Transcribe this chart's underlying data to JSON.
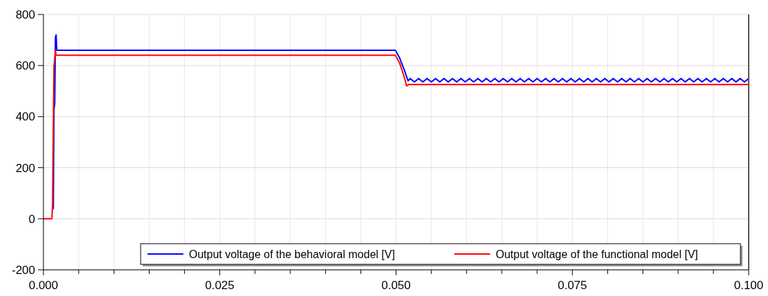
{
  "chart_data": {
    "type": "line",
    "xlim": [
      0,
      0.1
    ],
    "ylim": [
      -200,
      800
    ],
    "xticks": [
      {
        "value": 0,
        "label": "0.000"
      },
      {
        "value": 0.005,
        "label": null
      },
      {
        "value": 0.01,
        "label": null
      },
      {
        "value": 0.015,
        "label": null
      },
      {
        "value": 0.02,
        "label": null
      },
      {
        "value": 0.025,
        "label": "0.025"
      },
      {
        "value": 0.03,
        "label": null
      },
      {
        "value": 0.035,
        "label": null
      },
      {
        "value": 0.04,
        "label": null
      },
      {
        "value": 0.045,
        "label": null
      },
      {
        "value": 0.05,
        "label": "0.050"
      },
      {
        "value": 0.055,
        "label": null
      },
      {
        "value": 0.06,
        "label": null
      },
      {
        "value": 0.065,
        "label": null
      },
      {
        "value": 0.07,
        "label": null
      },
      {
        "value": 0.075,
        "label": "0.075"
      },
      {
        "value": 0.08,
        "label": null
      },
      {
        "value": 0.085,
        "label": null
      },
      {
        "value": 0.09,
        "label": null
      },
      {
        "value": 0.095,
        "label": null
      },
      {
        "value": 0.1,
        "label": "0.100"
      }
    ],
    "yticks": [
      -200,
      0,
      200,
      400,
      600,
      800
    ],
    "grid": true,
    "legend": "bottom right",
    "line_style": "solid",
    "series": [
      {
        "name": "Output voltage of the behavioral model [V]",
        "color": "#0000ff",
        "x": [
          0.0014,
          0.0015,
          0.0016,
          0.0017,
          0.0018,
          0.0019,
          0.0499,
          0.0505,
          0.0512,
          0.0517,
          0.052,
          0.0526,
          0.0532,
          0.0538,
          0.0544,
          0.055,
          0.0556,
          0.0562,
          0.0568,
          0.0574,
          0.058,
          0.0586,
          0.0592,
          0.0598,
          0.0604,
          0.061,
          0.0616,
          0.0622,
          0.0628,
          0.0634,
          0.064,
          0.0646,
          0.0652,
          0.0658,
          0.0664,
          0.067,
          0.0676,
          0.0682,
          0.0688,
          0.0694,
          0.07,
          0.0706,
          0.0712,
          0.0718,
          0.0724,
          0.073,
          0.0736,
          0.0742,
          0.0748,
          0.0754,
          0.076,
          0.0766,
          0.0772,
          0.0778,
          0.0784,
          0.079,
          0.0796,
          0.0802,
          0.0808,
          0.0814,
          0.082,
          0.0826,
          0.0832,
          0.0838,
          0.0844,
          0.085,
          0.0856,
          0.0862,
          0.0868,
          0.0874,
          0.088,
          0.0886,
          0.0892,
          0.0898,
          0.0904,
          0.091,
          0.0916,
          0.0922,
          0.0928,
          0.0934,
          0.094,
          0.0946,
          0.0952,
          0.0958,
          0.0964,
          0.097,
          0.0976,
          0.0982,
          0.0988,
          0.0994,
          0.1
        ],
        "values": [
          40,
          430,
          450,
          710,
          720,
          660,
          660,
          630,
          580,
          540,
          549,
          536,
          549,
          536,
          549,
          536,
          549,
          536,
          549,
          536,
          549,
          536,
          549,
          536,
          549,
          536,
          549,
          536,
          549,
          536,
          549,
          536,
          549,
          536,
          549,
          536,
          549,
          536,
          549,
          536,
          549,
          536,
          549,
          536,
          549,
          536,
          549,
          536,
          549,
          536,
          549,
          536,
          549,
          536,
          549,
          536,
          549,
          536,
          549,
          536,
          549,
          536,
          549,
          536,
          549,
          536,
          549,
          536,
          549,
          536,
          549,
          536,
          549,
          536,
          549,
          536,
          549,
          536,
          549,
          536,
          549,
          536,
          549,
          536,
          549,
          536,
          549,
          536,
          549,
          536,
          549
        ]
      },
      {
        "name": "Output voltage of the functional model [V]",
        "color": "#ff0000",
        "x": [
          0,
          0.0012,
          0.0013,
          0.0014,
          0.0015,
          0.0017,
          0.0018,
          0.0499,
          0.0505,
          0.0511,
          0.0515,
          0.0518,
          0.1
        ],
        "values": [
          0,
          0,
          60,
          360,
          600,
          660,
          640,
          640,
          610,
          560,
          520,
          526,
          526
        ]
      }
    ]
  }
}
